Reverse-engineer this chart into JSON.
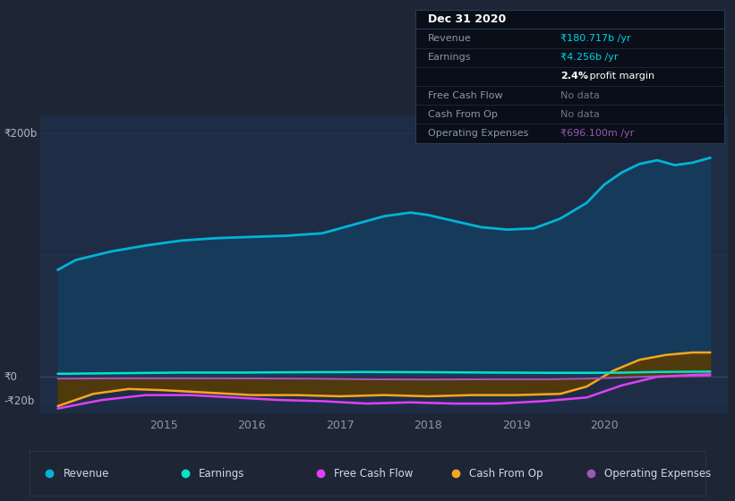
{
  "background_color": "#1e2535",
  "plot_bg_color": "#1e2d45",
  "fig_width": 8.21,
  "fig_height": 5.6,
  "dpi": 100,
  "ylim": [
    -30,
    215
  ],
  "xlim": [
    2013.6,
    2021.4
  ],
  "xticks": [
    2015,
    2016,
    2017,
    2018,
    2019,
    2020
  ],
  "ytick_positions": [
    200,
    0,
    -20
  ],
  "ytick_labels": [
    "₹200b",
    "₹0",
    "-₹20b"
  ],
  "revenue_x": [
    2013.8,
    2014.0,
    2014.4,
    2014.8,
    2015.2,
    2015.6,
    2016.0,
    2016.4,
    2016.8,
    2017.0,
    2017.2,
    2017.5,
    2017.8,
    2018.0,
    2018.3,
    2018.6,
    2018.9,
    2019.2,
    2019.5,
    2019.8,
    2020.0,
    2020.2,
    2020.4,
    2020.6,
    2020.8,
    2021.0,
    2021.2
  ],
  "revenue_y": [
    88,
    96,
    103,
    108,
    112,
    114,
    115,
    116,
    118,
    122,
    126,
    132,
    135,
    133,
    128,
    123,
    121,
    122,
    130,
    143,
    158,
    168,
    175,
    178,
    174,
    176,
    180
  ],
  "earnings_x": [
    2013.8,
    2014.5,
    2015.2,
    2015.9,
    2016.6,
    2017.3,
    2018.0,
    2018.7,
    2019.4,
    2019.8,
    2020.2,
    2020.6,
    2021.0,
    2021.2
  ],
  "earnings_y": [
    2.5,
    3.0,
    3.5,
    3.5,
    3.8,
    4.0,
    3.8,
    3.5,
    3.3,
    3.3,
    3.4,
    4.0,
    4.2,
    4.3
  ],
  "cashflow_x": [
    2013.8,
    2014.3,
    2014.8,
    2015.3,
    2015.8,
    2016.3,
    2016.8,
    2017.3,
    2017.8,
    2018.3,
    2018.8,
    2019.3,
    2019.8,
    2020.2,
    2020.6,
    2021.0,
    2021.2
  ],
  "cashflow_y": [
    -26,
    -19,
    -15,
    -15,
    -17,
    -19,
    -20,
    -22,
    -21,
    -22,
    -22,
    -20,
    -17,
    -7,
    0,
    1.5,
    2
  ],
  "cashfromop_x": [
    2013.8,
    2014.2,
    2014.6,
    2015.0,
    2015.5,
    2016.0,
    2016.5,
    2017.0,
    2017.5,
    2018.0,
    2018.5,
    2019.0,
    2019.5,
    2019.8,
    2020.1,
    2020.4,
    2020.7,
    2021.0,
    2021.2
  ],
  "cashfromop_y": [
    -24,
    -14,
    -10,
    -11,
    -13,
    -15,
    -15,
    -16,
    -15,
    -16,
    -15,
    -15,
    -14,
    -8,
    5,
    14,
    18,
    20,
    20
  ],
  "opex_x": [
    2013.8,
    2014.5,
    2015.2,
    2015.9,
    2016.6,
    2017.3,
    2018.0,
    2018.7,
    2019.4,
    2019.8,
    2020.2,
    2020.6,
    2021.0,
    2021.2
  ],
  "opex_y": [
    -1.5,
    -1.2,
    -1.2,
    -1.3,
    -1.5,
    -2.0,
    -2.2,
    -2.0,
    -2.0,
    -1.5,
    -0.5,
    0.4,
    0.6,
    0.7
  ],
  "revenue_color": "#00b4d8",
  "revenue_fill": "#163a5a",
  "earnings_color": "#00e5c8",
  "cashflow_color": "#e040fb",
  "cashfromop_color": "#f5a623",
  "cashfromop_fill": "#5a3c00",
  "opex_color": "#9b59b6",
  "opex_fill": "#3d1a5a",
  "zero_line_color": "#3a4a5f",
  "grid_line_color": "#253550",
  "text_color": "#aabbcc",
  "tick_color": "#8899aa",
  "tooltip_bg": "#090e18",
  "tooltip_border": "#2a3a55",
  "legend_items": [
    {
      "label": "Revenue",
      "color": "#00b4d8"
    },
    {
      "label": "Earnings",
      "color": "#00e5c8"
    },
    {
      "label": "Free Cash Flow",
      "color": "#e040fb"
    },
    {
      "label": "Cash From Op",
      "color": "#f5a623"
    },
    {
      "label": "Operating Expenses",
      "color": "#9b59b6"
    }
  ],
  "tooltip_rows": [
    {
      "label": "Revenue",
      "value": "₹180.717b /yr",
      "color": "#00d4e8",
      "bold_part": ""
    },
    {
      "label": "Earnings",
      "value": "₹4.256b /yr",
      "color": "#00d4e8",
      "bold_part": ""
    },
    {
      "label": "",
      "value": "2.4% profit margin",
      "color": "#ffffff",
      "bold_part": "2.4%"
    },
    {
      "label": "Free Cash Flow",
      "value": "No data",
      "color": "#6a7a8a",
      "bold_part": ""
    },
    {
      "label": "Cash From Op",
      "value": "No data",
      "color": "#6a7a8a",
      "bold_part": ""
    },
    {
      "label": "Operating Expenses",
      "value": "₹696.100m /yr",
      "color": "#9b59b6",
      "bold_part": ""
    }
  ],
  "tooltip_title": "Dec 31 2020"
}
